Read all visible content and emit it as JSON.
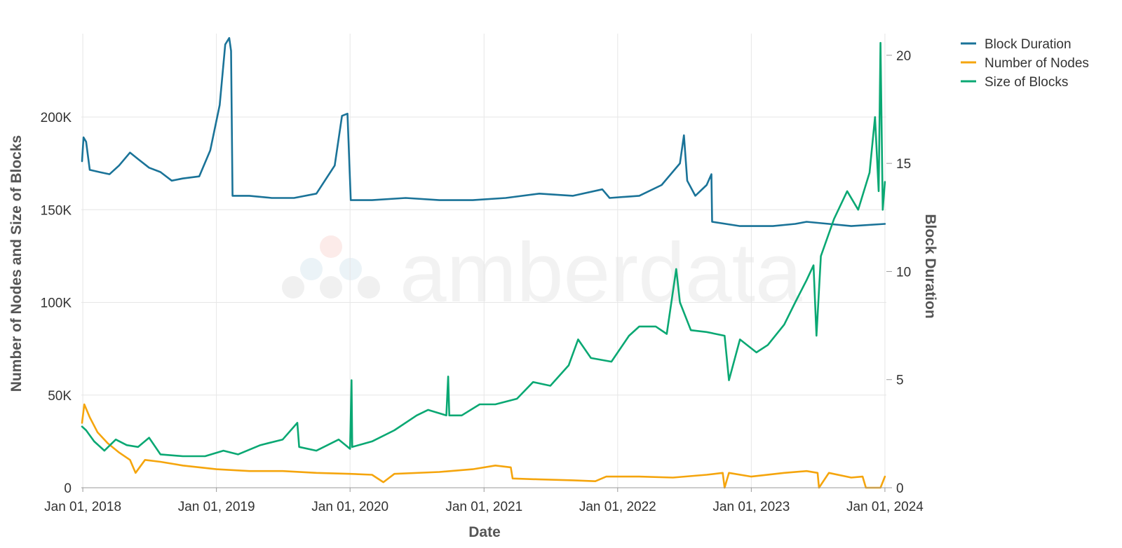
{
  "chart_data": {
    "type": "line",
    "watermark": "amberdata",
    "xlabel": "Date",
    "ylabel_left": "Number of Nodes and Size of Blocks",
    "ylabel_right": "Block Duration",
    "x_tick_labels": [
      "Jan 01, 2018",
      "Jan 01, 2019",
      "Jan 01, 2020",
      "Jan 01, 2021",
      "Jan 01, 2022",
      "Jan 01, 2023",
      "Jan 01, 2024"
    ],
    "xlim": [
      "2017-12-28",
      "2024-01-05"
    ],
    "y_left": {
      "range": [
        0,
        245000
      ],
      "ticks": [
        0,
        50000,
        100000,
        150000,
        200000
      ],
      "tick_labels": [
        "0",
        "50K",
        "100K",
        "150K",
        "200K"
      ]
    },
    "y_right": {
      "range": [
        0,
        21
      ],
      "ticks": [
        0,
        5,
        10,
        15,
        20
      ],
      "tick_labels": [
        "0",
        "5",
        "10",
        "15",
        "20"
      ]
    },
    "grid": true,
    "legend_position": "top-right",
    "series": [
      {
        "name": "Block Duration",
        "axis": "right",
        "color": "#1a7398",
        "points": [
          [
            "2017-12-30",
            15.1
          ],
          [
            "2018-01-03",
            16.2
          ],
          [
            "2018-01-10",
            16.0
          ],
          [
            "2018-01-20",
            14.7
          ],
          [
            "2018-02-15",
            14.6
          ],
          [
            "2018-03-15",
            14.5
          ],
          [
            "2018-04-10",
            14.9
          ],
          [
            "2018-05-10",
            15.5
          ],
          [
            "2018-06-01",
            15.2
          ],
          [
            "2018-07-01",
            14.8
          ],
          [
            "2018-08-01",
            14.6
          ],
          [
            "2018-09-01",
            14.2
          ],
          [
            "2018-10-01",
            14.3
          ],
          [
            "2018-11-15",
            14.4
          ],
          [
            "2018-12-15",
            15.6
          ],
          [
            "2019-01-10",
            17.7
          ],
          [
            "2019-01-25",
            20.5
          ],
          [
            "2019-02-05",
            20.8
          ],
          [
            "2019-02-10",
            20.2
          ],
          [
            "2019-02-14",
            13.5
          ],
          [
            "2019-04-01",
            13.5
          ],
          [
            "2019-06-01",
            13.4
          ],
          [
            "2019-08-01",
            13.4
          ],
          [
            "2019-10-01",
            13.6
          ],
          [
            "2019-11-20",
            14.9
          ],
          [
            "2019-12-10",
            17.2
          ],
          [
            "2019-12-25",
            17.3
          ],
          [
            "2020-01-03",
            13.3
          ],
          [
            "2020-03-01",
            13.3
          ],
          [
            "2020-06-01",
            13.4
          ],
          [
            "2020-09-01",
            13.3
          ],
          [
            "2020-12-01",
            13.3
          ],
          [
            "2021-03-01",
            13.4
          ],
          [
            "2021-06-01",
            13.6
          ],
          [
            "2021-09-01",
            13.5
          ],
          [
            "2021-11-20",
            13.8
          ],
          [
            "2021-12-10",
            13.4
          ],
          [
            "2022-03-01",
            13.5
          ],
          [
            "2022-05-01",
            14.0
          ],
          [
            "2022-06-20",
            15.0
          ],
          [
            "2022-07-01",
            16.3
          ],
          [
            "2022-07-10",
            14.2
          ],
          [
            "2022-08-01",
            13.5
          ],
          [
            "2022-09-01",
            14.0
          ],
          [
            "2022-09-14",
            14.5
          ],
          [
            "2022-09-16",
            12.3
          ],
          [
            "2022-12-01",
            12.1
          ],
          [
            "2023-03-01",
            12.1
          ],
          [
            "2023-05-01",
            12.2
          ],
          [
            "2023-06-01",
            12.3
          ],
          [
            "2023-08-01",
            12.2
          ],
          [
            "2023-10-01",
            12.1
          ],
          [
            "2024-01-01",
            12.2
          ]
        ]
      },
      {
        "name": "Number of Nodes",
        "axis": "left",
        "color": "#f5a50d",
        "points": [
          [
            "2017-12-30",
            35000
          ],
          [
            "2018-01-05",
            45000
          ],
          [
            "2018-01-20",
            38000
          ],
          [
            "2018-02-10",
            30000
          ],
          [
            "2018-03-10",
            24000
          ],
          [
            "2018-04-10",
            19000
          ],
          [
            "2018-05-10",
            15000
          ],
          [
            "2018-05-25",
            8000
          ],
          [
            "2018-06-20",
            15000
          ],
          [
            "2018-08-01",
            14000
          ],
          [
            "2018-10-01",
            12000
          ],
          [
            "2019-01-01",
            10000
          ],
          [
            "2019-04-01",
            9000
          ],
          [
            "2019-07-01",
            9000
          ],
          [
            "2019-10-01",
            8000
          ],
          [
            "2020-01-01",
            7500
          ],
          [
            "2020-03-01",
            7000
          ],
          [
            "2020-04-01",
            3000
          ],
          [
            "2020-05-01",
            7500
          ],
          [
            "2020-09-01",
            8500
          ],
          [
            "2020-12-01",
            10000
          ],
          [
            "2021-02-01",
            12000
          ],
          [
            "2021-03-15",
            11000
          ],
          [
            "2021-03-20",
            5000
          ],
          [
            "2021-06-01",
            4500
          ],
          [
            "2021-09-01",
            4000
          ],
          [
            "2021-11-01",
            3500
          ],
          [
            "2021-12-01",
            6000
          ],
          [
            "2022-03-01",
            6000
          ],
          [
            "2022-06-01",
            5500
          ],
          [
            "2022-09-01",
            7000
          ],
          [
            "2022-10-15",
            8000
          ],
          [
            "2022-10-20",
            0
          ],
          [
            "2022-11-01",
            8000
          ],
          [
            "2023-01-01",
            6000
          ],
          [
            "2023-04-01",
            8000
          ],
          [
            "2023-06-01",
            9000
          ],
          [
            "2023-07-01",
            8000
          ],
          [
            "2023-07-05",
            0
          ],
          [
            "2023-08-01",
            8000
          ],
          [
            "2023-10-01",
            5500
          ],
          [
            "2023-11-01",
            6000
          ],
          [
            "2023-11-10",
            0
          ],
          [
            "2023-12-20",
            0
          ],
          [
            "2024-01-01",
            6000
          ]
        ]
      },
      {
        "name": "Size of Blocks",
        "axis": "left",
        "color": "#0aa873",
        "points": [
          [
            "2017-12-30",
            33000
          ],
          [
            "2018-01-10",
            31000
          ],
          [
            "2018-02-01",
            25000
          ],
          [
            "2018-03-01",
            20000
          ],
          [
            "2018-04-01",
            26000
          ],
          [
            "2018-05-01",
            23000
          ],
          [
            "2018-06-01",
            22000
          ],
          [
            "2018-07-01",
            27000
          ],
          [
            "2018-08-01",
            18000
          ],
          [
            "2018-10-01",
            17000
          ],
          [
            "2018-12-01",
            17000
          ],
          [
            "2019-01-20",
            20000
          ],
          [
            "2019-03-01",
            18000
          ],
          [
            "2019-05-01",
            23000
          ],
          [
            "2019-07-01",
            26000
          ],
          [
            "2019-08-10",
            35000
          ],
          [
            "2019-08-15",
            22000
          ],
          [
            "2019-10-01",
            20000
          ],
          [
            "2019-12-01",
            26000
          ],
          [
            "2020-01-01",
            21000
          ],
          [
            "2020-01-05",
            58000
          ],
          [
            "2020-01-07",
            22000
          ],
          [
            "2020-03-01",
            25000
          ],
          [
            "2020-05-01",
            31000
          ],
          [
            "2020-07-01",
            39000
          ],
          [
            "2020-08-01",
            42000
          ],
          [
            "2020-09-20",
            39000
          ],
          [
            "2020-09-25",
            60000
          ],
          [
            "2020-09-28",
            39000
          ],
          [
            "2020-11-01",
            39000
          ],
          [
            "2020-12-20",
            45000
          ],
          [
            "2021-02-01",
            45000
          ],
          [
            "2021-04-01",
            48000
          ],
          [
            "2021-05-15",
            57000
          ],
          [
            "2021-07-01",
            55000
          ],
          [
            "2021-08-20",
            66000
          ],
          [
            "2021-09-15",
            80000
          ],
          [
            "2021-10-20",
            70000
          ],
          [
            "2021-12-15",
            68000
          ],
          [
            "2022-02-01",
            82000
          ],
          [
            "2022-03-01",
            87000
          ],
          [
            "2022-04-15",
            87000
          ],
          [
            "2022-05-15",
            83000
          ],
          [
            "2022-06-10",
            118000
          ],
          [
            "2022-06-20",
            100000
          ],
          [
            "2022-07-20",
            85000
          ],
          [
            "2022-09-01",
            84000
          ],
          [
            "2022-10-20",
            82000
          ],
          [
            "2022-11-01",
            58000
          ],
          [
            "2022-12-01",
            80000
          ],
          [
            "2023-01-15",
            73000
          ],
          [
            "2023-02-15",
            77000
          ],
          [
            "2023-04-01",
            88000
          ],
          [
            "2023-05-01",
            100000
          ],
          [
            "2023-06-01",
            112000
          ],
          [
            "2023-06-20",
            120000
          ],
          [
            "2023-06-28",
            82000
          ],
          [
            "2023-07-10",
            125000
          ],
          [
            "2023-08-15",
            145000
          ],
          [
            "2023-09-20",
            160000
          ],
          [
            "2023-10-20",
            150000
          ],
          [
            "2023-11-20",
            170000
          ],
          [
            "2023-12-05",
            200000
          ],
          [
            "2023-12-15",
            160000
          ],
          [
            "2023-12-20",
            240000
          ],
          [
            "2023-12-26",
            150000
          ],
          [
            "2024-01-01",
            165000
          ]
        ]
      }
    ]
  }
}
